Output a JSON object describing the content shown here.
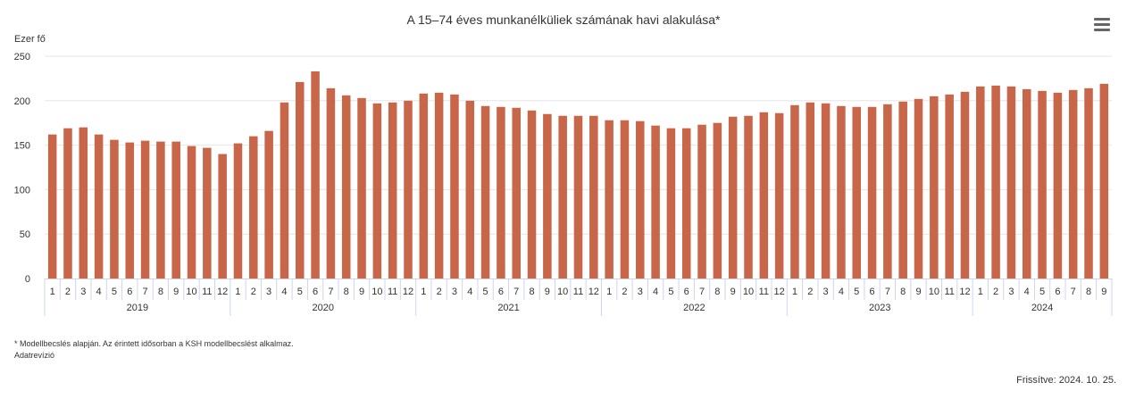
{
  "chart_data": {
    "type": "bar",
    "title": "A 15–74 éves munkanélküliek számának havi alakulása*",
    "ylabel": "Ezer fő",
    "ylim": [
      0,
      250
    ],
    "yticks": [
      0,
      50,
      100,
      150,
      200,
      250
    ],
    "grid": true,
    "bar_color": "#c8664a",
    "years": [
      {
        "label": "2019",
        "months": [
          "1",
          "2",
          "3",
          "4",
          "5",
          "6",
          "7",
          "8",
          "9",
          "10",
          "11",
          "12"
        ],
        "values": [
          162,
          169,
          170,
          162,
          156,
          153,
          155,
          154,
          154,
          149,
          147,
          140
        ]
      },
      {
        "label": "2020",
        "months": [
          "1",
          "2",
          "3",
          "4",
          "5",
          "6",
          "7",
          "8",
          "9",
          "10",
          "11",
          "12"
        ],
        "values": [
          152,
          160,
          166,
          198,
          221,
          233,
          214,
          206,
          203,
          197,
          198,
          200
        ]
      },
      {
        "label": "2021",
        "months": [
          "1",
          "2",
          "3",
          "4",
          "5",
          "6",
          "7",
          "8",
          "9",
          "10",
          "11",
          "12"
        ],
        "values": [
          208,
          209,
          207,
          200,
          194,
          193,
          192,
          189,
          185,
          183,
          183,
          183
        ]
      },
      {
        "label": "2022",
        "months": [
          "1",
          "2",
          "3",
          "4",
          "5",
          "6",
          "7",
          "8",
          "9",
          "10",
          "11",
          "12"
        ],
        "values": [
          178,
          178,
          177,
          172,
          169,
          169,
          173,
          175,
          182,
          183,
          187,
          186
        ]
      },
      {
        "label": "2023",
        "months": [
          "1",
          "2",
          "3",
          "4",
          "5",
          "6",
          "7",
          "8",
          "9",
          "10",
          "11",
          "12"
        ],
        "values": [
          195,
          198,
          197,
          194,
          193,
          193,
          196,
          199,
          202,
          205,
          207,
          210
        ]
      },
      {
        "label": "2024",
        "months": [
          "1",
          "2",
          "3",
          "4",
          "5",
          "6",
          "7",
          "8",
          "9"
        ],
        "values": [
          216,
          217,
          216,
          213,
          211,
          209,
          212,
          214,
          219
        ]
      }
    ]
  },
  "menu": {
    "icon": "hamburger-menu-icon"
  },
  "footnote": {
    "note": "* Modellbecslés alapján. Az érintett idősorban a KSH modellbecslést alkalmaz.",
    "link": "Adatrevízió"
  },
  "updated": "Frissítve: 2024. 10. 25."
}
